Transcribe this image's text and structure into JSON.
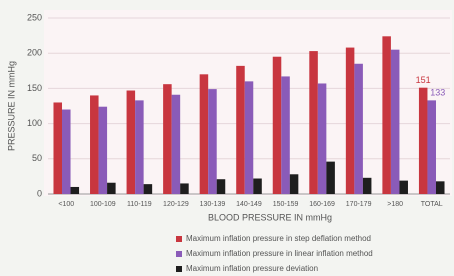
{
  "chart_data": {
    "type": "bar",
    "y_label": "PRESSURE IN mmHg",
    "x_label": "BLOOD PRESSURE IN mmHg",
    "categories": [
      "<100",
      "100-109",
      "110-119",
      "120-129",
      "130-139",
      "140-149",
      "150-159",
      "160-169",
      "170-179",
      ">180",
      "TOTAL"
    ],
    "series": [
      {
        "name": "Maximum inflation pressure in step deflation method",
        "color": "#c8363f",
        "values": [
          130,
          140,
          147,
          156,
          170,
          182,
          195,
          203,
          208,
          224,
          151
        ]
      },
      {
        "name": "Maximum inflation pressure in linear inflation method",
        "color": "#8a5bb8",
        "values": [
          120,
          124,
          133,
          141,
          149,
          160,
          167,
          157,
          185,
          205,
          133
        ]
      },
      {
        "name": "Maximum inflation pressure deviation",
        "color": "#1e1e1e",
        "values": [
          10,
          16,
          14,
          15,
          21,
          22,
          28,
          46,
          23,
          19,
          18
        ]
      }
    ],
    "ylim": [
      0,
      250
    ],
    "yticks": [
      0,
      50,
      100,
      150,
      200,
      250
    ],
    "grid": true
  }
}
